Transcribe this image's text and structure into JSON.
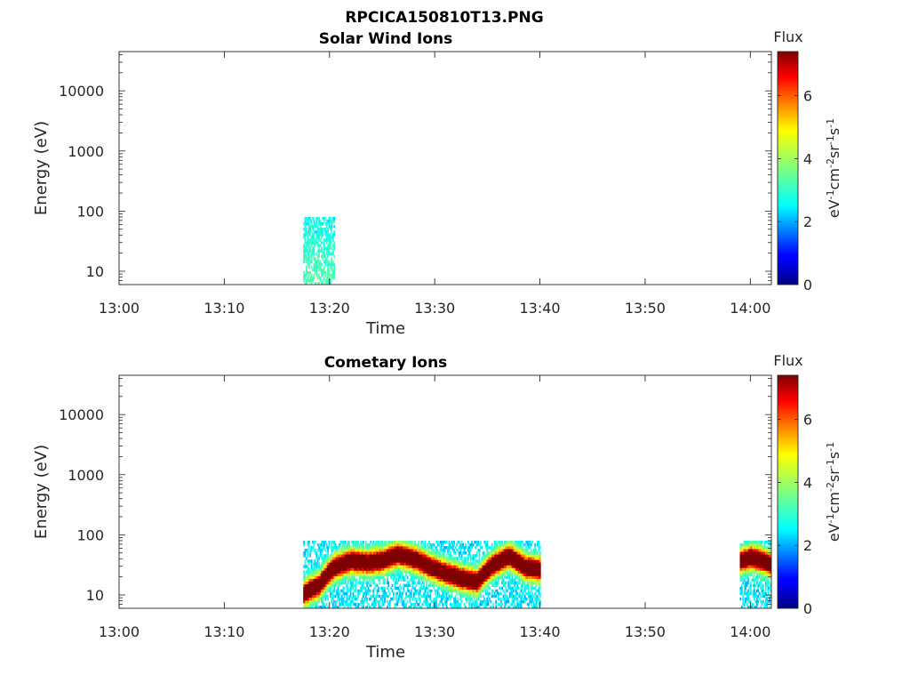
{
  "figure_title": "RPCICA150810T13.PNG",
  "colors": {
    "axis": "#262626",
    "colormap": [
      "#00007f",
      "#0000ff",
      "#007fff",
      "#00ffff",
      "#7fff7f",
      "#ffff00",
      "#ff7f00",
      "#ff0000",
      "#7f0000"
    ]
  },
  "chart_data": [
    {
      "type": "heatmap",
      "title": "Solar Wind Ions",
      "xlabel": "Time",
      "ylabel": "Energy (eV)",
      "yscale": "log",
      "xlim": [
        "13:00",
        "14:02"
      ],
      "ylim": [
        6,
        45000
      ],
      "xticks": [
        "13:00",
        "13:10",
        "13:20",
        "13:30",
        "13:40",
        "13:50",
        "14:00"
      ],
      "yticks": [
        "10",
        "100",
        "1000",
        "10000"
      ],
      "colorbar": {
        "label": "Flux",
        "unit": "eV-1cm-2sr-1s-1",
        "ticks": [
          "0",
          "2",
          "4",
          "6"
        ],
        "range": [
          0,
          7.4
        ]
      },
      "regions": [
        {
          "t_start": "13:17:30",
          "t_end": "13:20:30",
          "e_min": 6,
          "e_max": 80,
          "flux_low_energy": 3.3,
          "flux_high_energy": 2.6
        }
      ]
    },
    {
      "type": "heatmap",
      "title": "Cometary Ions",
      "xlabel": "Time",
      "ylabel": "Energy (eV)",
      "yscale": "log",
      "xlim": [
        "13:00",
        "14:02"
      ],
      "ylim": [
        6,
        45000
      ],
      "xticks": [
        "13:00",
        "13:10",
        "13:20",
        "13:30",
        "13:40",
        "13:50",
        "14:00"
      ],
      "yticks": [
        "10",
        "100",
        "1000",
        "10000"
      ],
      "colorbar": {
        "label": "Flux",
        "unit": "eV-1cm-2sr-1s-1",
        "ticks": [
          "0",
          "2",
          "4",
          "6"
        ],
        "range": [
          0,
          7.4
        ]
      },
      "regions": [
        {
          "t_start": "13:17:30",
          "t_end": "13:40:00",
          "e_min": 6,
          "e_max": 80,
          "peak_flux": 7.2,
          "peak_energy_trace": [
            [
              17.5,
              10
            ],
            [
              19.0,
              14
            ],
            [
              20.5,
              28
            ],
            [
              22.0,
              35
            ],
            [
              23.5,
              33
            ],
            [
              25.0,
              36
            ],
            [
              26.5,
              45
            ],
            [
              28.0,
              38
            ],
            [
              29.5,
              28
            ],
            [
              31.0,
              22
            ],
            [
              32.5,
              18
            ],
            [
              34.0,
              16
            ],
            [
              35.5,
              30
            ],
            [
              37.0,
              42
            ],
            [
              38.5,
              28
            ],
            [
              40.0,
              25
            ]
          ]
        },
        {
          "t_start": "13:59:00",
          "t_end": "14:02:00",
          "e_min": 6,
          "e_max": 80,
          "peak_flux": 7.0,
          "peak_energy_trace": [
            [
              59.0,
              35
            ],
            [
              60.0,
              40
            ],
            [
              61.0,
              36
            ],
            [
              62.0,
              30
            ]
          ]
        }
      ]
    }
  ]
}
